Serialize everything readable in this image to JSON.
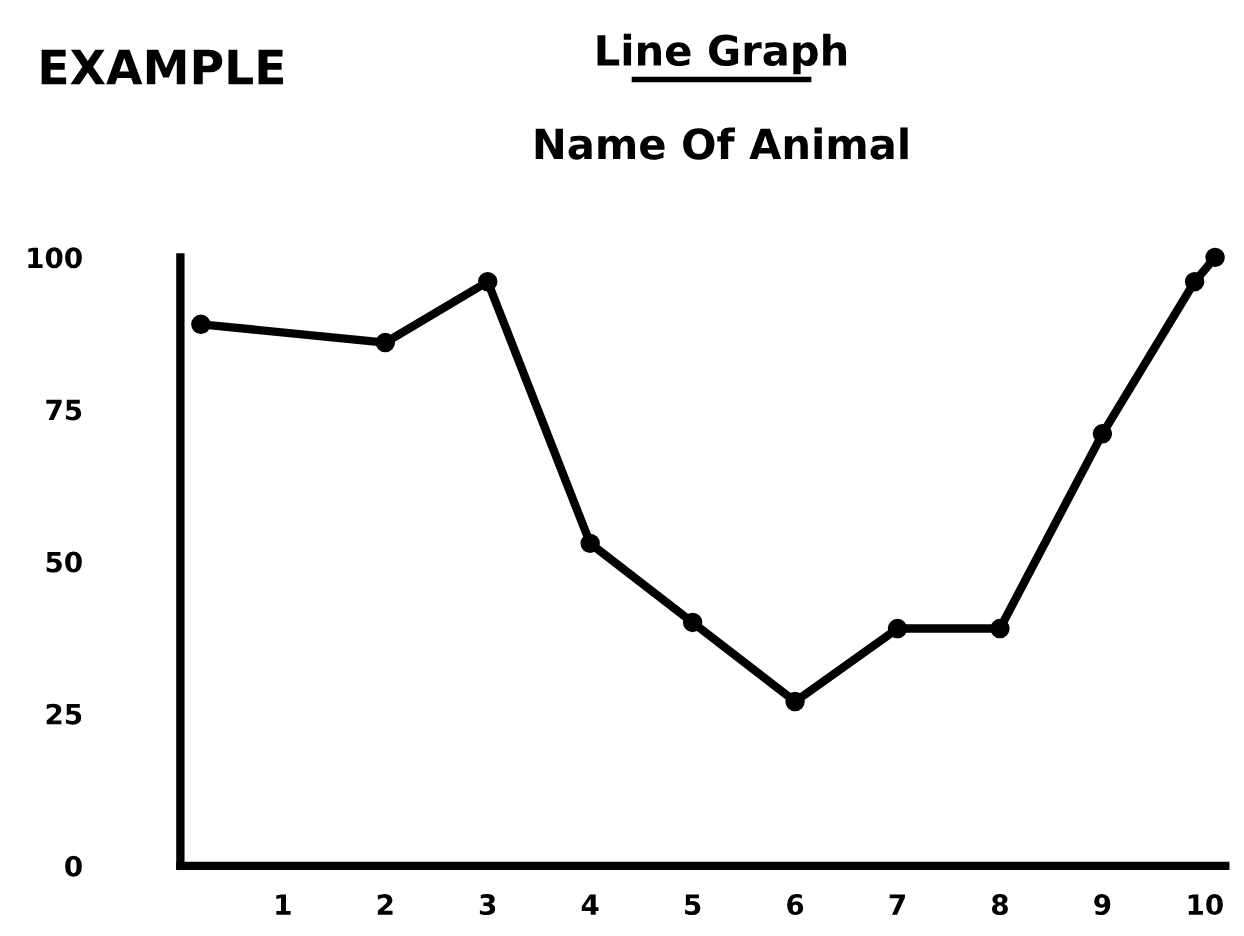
{
  "chart_data": {
    "type": "line",
    "title": "Line Graph",
    "subtitle": "Name Of Animal",
    "annotations": [
      "EXAMPLE"
    ],
    "series": [
      {
        "color": "#000000",
        "x": [
          0.2,
          2,
          3,
          4,
          5,
          6,
          7,
          8,
          9,
          9.9,
          10.1
        ],
        "values": [
          89,
          86,
          96,
          53,
          40,
          27,
          39,
          39,
          71,
          96,
          100
        ]
      }
    ],
    "xlim": [
      0,
      10.2
    ],
    "ylim": [
      0,
      100
    ],
    "xticks": [
      1,
      2,
      3,
      4,
      5,
      6,
      7,
      8,
      9,
      10
    ],
    "yticks": [
      0,
      25,
      50,
      75,
      100
    ],
    "marker": "circle",
    "line_style": "solid",
    "grid": false,
    "legend": false
  }
}
